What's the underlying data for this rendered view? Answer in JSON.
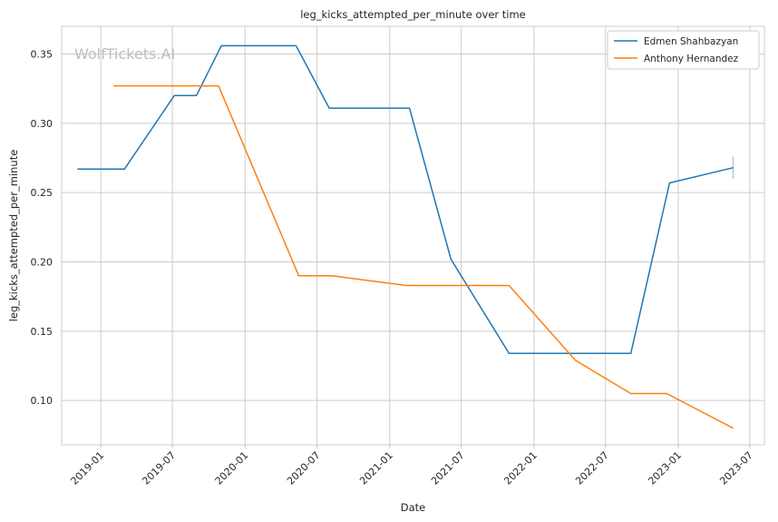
{
  "chart_data": {
    "type": "line",
    "title": "leg_kicks_attempted_per_minute over time",
    "xlabel": "Date",
    "ylabel": "leg_kicks_attempted_per_minute",
    "watermark": "WolfTickets.AI",
    "xlim": [
      "2018-09-24",
      "2023-08-07"
    ],
    "ylim": [
      0.068,
      0.37
    ],
    "x_ticks": [
      "2019-01",
      "2019-07",
      "2020-01",
      "2020-07",
      "2021-01",
      "2021-07",
      "2022-01",
      "2022-07",
      "2023-01",
      "2023-07"
    ],
    "y_ticks": [
      0.1,
      0.15,
      0.2,
      0.25,
      0.3,
      0.35
    ],
    "y_tick_labels": [
      "0.10",
      "0.15",
      "0.20",
      "0.25",
      "0.30",
      "0.35"
    ],
    "grid": true,
    "legend_position": "top-right",
    "series": [
      {
        "name": "Edmen Shahbazyan",
        "color": "#1f77b4",
        "points": [
          [
            "2018-11-03",
            0.267
          ],
          [
            "2019-03-02",
            0.267
          ],
          [
            "2019-07-06",
            0.32
          ],
          [
            "2019-08-31",
            0.32
          ],
          [
            "2019-11-02",
            0.356
          ],
          [
            "2020-05-09",
            0.356
          ],
          [
            "2020-08-01",
            0.311
          ],
          [
            "2021-02-20",
            0.311
          ],
          [
            "2021-06-05",
            0.202
          ],
          [
            "2021-10-30",
            0.134
          ],
          [
            "2022-09-03",
            0.134
          ],
          [
            "2022-12-10",
            0.257
          ],
          [
            "2023-05-20",
            0.268
          ]
        ]
      },
      {
        "name": "Anthony Hernandez",
        "color": "#ff7f0e",
        "points": [
          [
            "2019-02-02",
            0.327
          ],
          [
            "2019-10-26",
            0.327
          ],
          [
            "2020-05-16",
            0.19
          ],
          [
            "2020-08-08",
            0.19
          ],
          [
            "2021-02-13",
            0.183
          ],
          [
            "2021-10-30",
            0.183
          ],
          [
            "2022-04-16",
            0.129
          ],
          [
            "2022-09-03",
            0.105
          ],
          [
            "2022-12-03",
            0.105
          ],
          [
            "2023-05-20",
            0.08
          ]
        ]
      }
    ]
  }
}
